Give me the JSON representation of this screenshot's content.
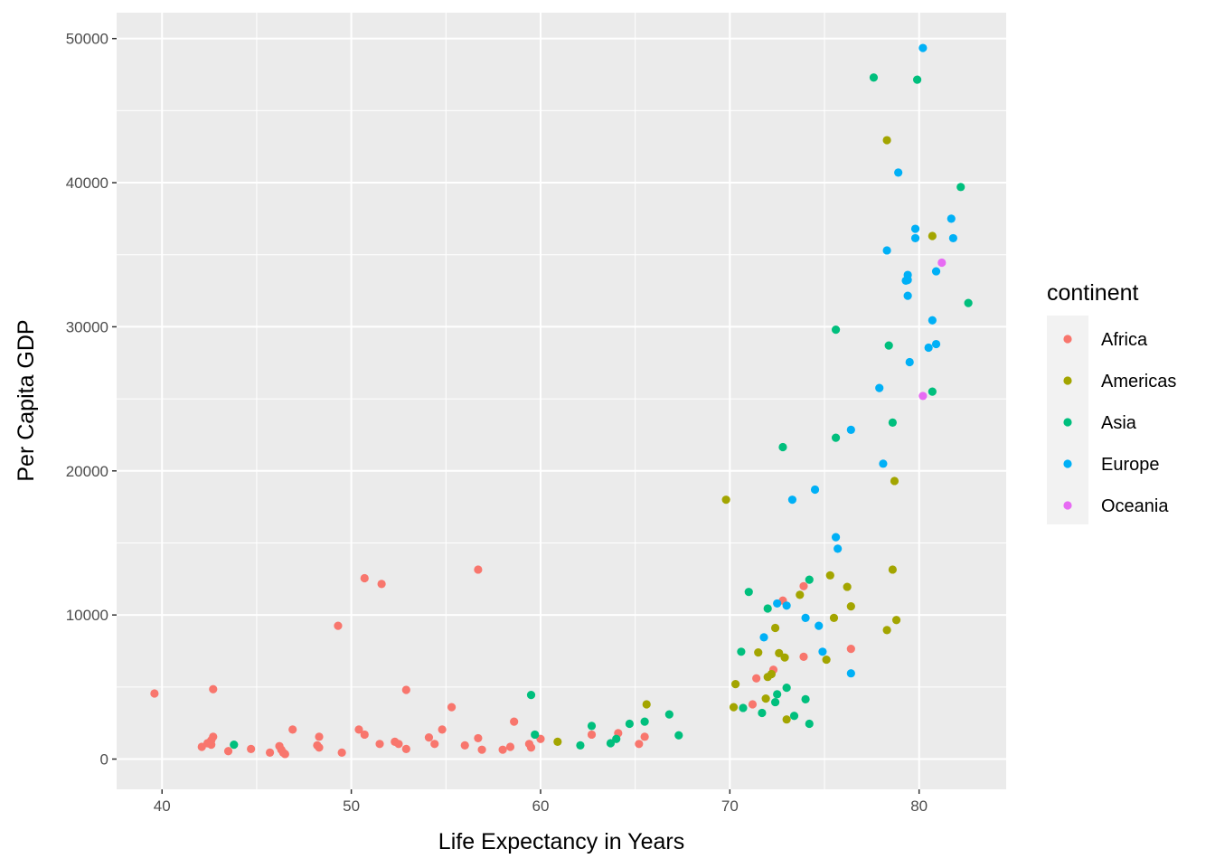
{
  "chart_data": {
    "type": "scatter",
    "xlabel": "Life Expectancy in Years",
    "ylabel": "Per Capita GDP",
    "xlim": [
      37.6,
      84.6
    ],
    "ylim": [
      -2100,
      51800
    ],
    "x_ticks": [
      40,
      50,
      60,
      70,
      80
    ],
    "y_ticks": [
      0,
      10000,
      20000,
      30000,
      40000,
      50000
    ],
    "x_tick_labels": [
      "40",
      "50",
      "60",
      "70",
      "80"
    ],
    "y_tick_labels": [
      "0",
      "10000",
      "20000",
      "30000",
      "40000",
      "50000"
    ],
    "grid": true,
    "legend": {
      "title": "continent",
      "position": "right"
    },
    "series": [
      {
        "name": "Africa",
        "color": "#F8766D",
        "points": [
          [
            39.6,
            4550
          ],
          [
            42.1,
            850
          ],
          [
            42.4,
            1100
          ],
          [
            42.6,
            1300
          ],
          [
            42.6,
            1000
          ],
          [
            42.7,
            1550
          ],
          [
            42.7,
            4850
          ],
          [
            43.5,
            550
          ],
          [
            44.7,
            700
          ],
          [
            45.7,
            450
          ],
          [
            46.2,
            900
          ],
          [
            46.3,
            650
          ],
          [
            46.4,
            450
          ],
          [
            46.5,
            350
          ],
          [
            46.9,
            2050
          ],
          [
            48.2,
            950
          ],
          [
            48.3,
            800
          ],
          [
            48.3,
            1550
          ],
          [
            49.3,
            9250
          ],
          [
            49.5,
            450
          ],
          [
            50.4,
            2050
          ],
          [
            50.7,
            12550
          ],
          [
            50.7,
            1700
          ],
          [
            51.5,
            1050
          ],
          [
            51.6,
            12150
          ],
          [
            52.3,
            1200
          ],
          [
            52.5,
            1050
          ],
          [
            52.9,
            700
          ],
          [
            52.9,
            4800
          ],
          [
            54.1,
            1500
          ],
          [
            54.4,
            1050
          ],
          [
            54.8,
            2050
          ],
          [
            55.3,
            3600
          ],
          [
            56.0,
            950
          ],
          [
            56.7,
            1450
          ],
          [
            56.7,
            13150
          ],
          [
            56.9,
            650
          ],
          [
            58.0,
            650
          ],
          [
            58.4,
            850
          ],
          [
            58.6,
            2600
          ],
          [
            59.4,
            1050
          ],
          [
            59.5,
            800
          ],
          [
            60.0,
            1400
          ],
          [
            62.7,
            1700
          ],
          [
            64.1,
            1800
          ],
          [
            65.2,
            1050
          ],
          [
            65.5,
            1550
          ],
          [
            71.2,
            3800
          ],
          [
            71.4,
            5600
          ],
          [
            72.3,
            6200
          ],
          [
            72.8,
            11000
          ],
          [
            73.9,
            7100
          ],
          [
            73.9,
            12000
          ],
          [
            76.4,
            7650
          ]
        ]
      },
      {
        "name": "Americas",
        "color": "#A3A500",
        "points": [
          [
            60.9,
            1200
          ],
          [
            65.6,
            3800
          ],
          [
            69.8,
            18000
          ],
          [
            70.2,
            3600
          ],
          [
            70.3,
            5200
          ],
          [
            71.5,
            7400
          ],
          [
            71.9,
            4200
          ],
          [
            72.0,
            5700
          ],
          [
            72.2,
            5900
          ],
          [
            72.4,
            9100
          ],
          [
            72.6,
            7350
          ],
          [
            72.9,
            7050
          ],
          [
            73.0,
            2750
          ],
          [
            73.7,
            11400
          ],
          [
            75.1,
            6900
          ],
          [
            75.3,
            12750
          ],
          [
            75.5,
            9800
          ],
          [
            76.2,
            11950
          ],
          [
            76.4,
            10600
          ],
          [
            78.3,
            42950
          ],
          [
            78.3,
            8950
          ],
          [
            78.6,
            13150
          ],
          [
            78.7,
            19300
          ],
          [
            78.8,
            9650
          ],
          [
            80.7,
            36300
          ]
        ]
      },
      {
        "name": "Asia",
        "color": "#00BF7D",
        "points": [
          [
            43.8,
            1000
          ],
          [
            59.5,
            4450
          ],
          [
            59.7,
            1700
          ],
          [
            62.1,
            950
          ],
          [
            62.7,
            2300
          ],
          [
            63.7,
            1100
          ],
          [
            64.0,
            1400
          ],
          [
            64.7,
            2450
          ],
          [
            65.5,
            2600
          ],
          [
            66.8,
            3100
          ],
          [
            67.3,
            1650
          ],
          [
            70.6,
            7450
          ],
          [
            70.7,
            3550
          ],
          [
            71.0,
            11600
          ],
          [
            71.7,
            3200
          ],
          [
            72.0,
            10450
          ],
          [
            72.4,
            3950
          ],
          [
            72.5,
            4500
          ],
          [
            72.8,
            21650
          ],
          [
            73.0,
            4950
          ],
          [
            73.4,
            3000
          ],
          [
            74.0,
            4150
          ],
          [
            74.2,
            12450
          ],
          [
            74.2,
            2450
          ],
          [
            75.6,
            22300
          ],
          [
            75.6,
            29800
          ],
          [
            77.6,
            47300
          ],
          [
            78.4,
            28700
          ],
          [
            78.6,
            23350
          ],
          [
            79.9,
            47150
          ],
          [
            80.7,
            25500
          ],
          [
            82.2,
            39700
          ],
          [
            82.6,
            31650
          ]
        ]
      },
      {
        "name": "Europe",
        "color": "#00B0F6",
        "points": [
          [
            71.8,
            8450
          ],
          [
            72.5,
            10800
          ],
          [
            73.0,
            10650
          ],
          [
            73.3,
            18000
          ],
          [
            74.0,
            9800
          ],
          [
            74.5,
            18700
          ],
          [
            74.7,
            9250
          ],
          [
            74.9,
            7450
          ],
          [
            75.6,
            15400
          ],
          [
            75.7,
            14600
          ],
          [
            76.4,
            22850
          ],
          [
            76.4,
            5950
          ],
          [
            77.9,
            25750
          ],
          [
            78.1,
            20500
          ],
          [
            78.3,
            35300
          ],
          [
            78.9,
            40700
          ],
          [
            79.3,
            33200
          ],
          [
            79.4,
            33600
          ],
          [
            79.4,
            32150
          ],
          [
            79.4,
            33250
          ],
          [
            79.5,
            27550
          ],
          [
            79.8,
            36800
          ],
          [
            79.8,
            36150
          ],
          [
            80.2,
            49350
          ],
          [
            80.5,
            28550
          ],
          [
            80.7,
            30450
          ],
          [
            80.9,
            33850
          ],
          [
            80.9,
            28800
          ],
          [
            81.7,
            37500
          ],
          [
            81.8,
            36150
          ]
        ]
      },
      {
        "name": "Oceania",
        "color": "#E76BF3",
        "points": [
          [
            80.2,
            25200
          ],
          [
            81.2,
            34450
          ]
        ]
      }
    ]
  }
}
